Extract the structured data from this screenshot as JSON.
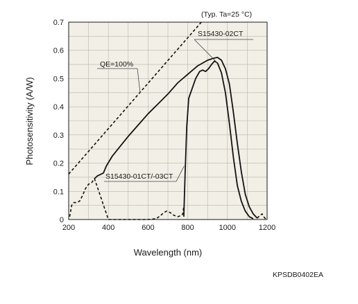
{
  "chart_data": {
    "type": "line",
    "note": "(Typ. Ta=25 °C)",
    "xlabel": "Wavelength (nm)",
    "ylabel": "Photosensitivity (A/W)",
    "xlim": [
      200,
      1200
    ],
    "ylim": [
      0,
      0.7
    ],
    "x_ticks": [
      "200",
      "400",
      "600",
      "800",
      "1000",
      "1200"
    ],
    "y_ticks": [
      "0",
      "0.1",
      "0.2",
      "0.3",
      "0.4",
      "0.5",
      "0.6",
      "0.7"
    ],
    "grid": true,
    "code": "KPSDB0402EA",
    "series": [
      {
        "name": "S15430-02CT",
        "style": "solid",
        "points": [
          [
            330,
            0.145
          ],
          [
            345,
            0.155
          ],
          [
            360,
            0.16
          ],
          [
            375,
            0.165
          ],
          [
            390,
            0.19
          ],
          [
            420,
            0.225
          ],
          [
            460,
            0.26
          ],
          [
            500,
            0.295
          ],
          [
            550,
            0.335
          ],
          [
            600,
            0.375
          ],
          [
            650,
            0.41
          ],
          [
            700,
            0.445
          ],
          [
            750,
            0.485
          ],
          [
            800,
            0.515
          ],
          [
            850,
            0.545
          ],
          [
            900,
            0.565
          ],
          [
            930,
            0.572
          ],
          [
            950,
            0.575
          ],
          [
            970,
            0.565
          ],
          [
            990,
            0.535
          ],
          [
            1010,
            0.48
          ],
          [
            1030,
            0.38
          ],
          [
            1050,
            0.27
          ],
          [
            1070,
            0.17
          ],
          [
            1090,
            0.09
          ],
          [
            1110,
            0.045
          ],
          [
            1130,
            0.02
          ],
          [
            1150,
            0.005
          ]
        ]
      },
      {
        "name": "S15430-01CT/-03CT",
        "style": "solid",
        "points": [
          [
            780,
            0.01
          ],
          [
            787,
            0.17
          ],
          [
            795,
            0.33
          ],
          [
            805,
            0.43
          ],
          [
            820,
            0.46
          ],
          [
            840,
            0.5
          ],
          [
            860,
            0.525
          ],
          [
            875,
            0.53
          ],
          [
            890,
            0.525
          ],
          [
            905,
            0.535
          ],
          [
            920,
            0.55
          ],
          [
            935,
            0.562
          ],
          [
            950,
            0.555
          ],
          [
            970,
            0.52
          ],
          [
            990,
            0.45
          ],
          [
            1010,
            0.34
          ],
          [
            1030,
            0.22
          ],
          [
            1050,
            0.12
          ],
          [
            1070,
            0.065
          ],
          [
            1090,
            0.03
          ],
          [
            1110,
            0.01
          ],
          [
            1130,
            0.003
          ]
        ]
      },
      {
        "name": "S15430-01CT/-03CT",
        "style": "dashed",
        "points": [
          [
            205,
            0.01
          ],
          [
            215,
            0.05
          ],
          [
            225,
            0.06
          ],
          [
            240,
            0.06
          ],
          [
            255,
            0.065
          ],
          [
            270,
            0.085
          ],
          [
            285,
            0.11
          ],
          [
            300,
            0.125
          ],
          [
            315,
            0.13
          ],
          [
            330,
            0.145
          ],
          [
            400,
            0.0
          ],
          [
            600,
            0.0
          ],
          [
            640,
            0.003
          ],
          [
            660,
            0.012
          ],
          [
            680,
            0.025
          ],
          [
            695,
            0.03
          ],
          [
            710,
            0.025
          ],
          [
            730,
            0.015
          ],
          [
            750,
            0.01
          ],
          [
            770,
            0.015
          ],
          [
            775,
            0.02
          ],
          [
            780,
            0.045
          ]
        ]
      },
      {
        "name": "QE=100%",
        "style": "dashed",
        "points": [
          [
            200,
            0.161
          ],
          [
            1000,
            0.806
          ]
        ]
      },
      {
        "name": "S15430-02CT",
        "style": "dashed",
        "points": [
          [
            1150,
            0.005
          ],
          [
            1165,
            0.015
          ],
          [
            1175,
            0.02
          ],
          [
            1185,
            0.008
          ],
          [
            1195,
            0.0
          ]
        ]
      }
    ],
    "annotations": [
      {
        "text": "S15430-02CT",
        "target": "S15430-02CT"
      },
      {
        "text": "QE=100%",
        "target": "QE=100%"
      },
      {
        "text": "S15430-01CT/-03CT",
        "target": "S15430-01CT/-03CT"
      }
    ]
  }
}
